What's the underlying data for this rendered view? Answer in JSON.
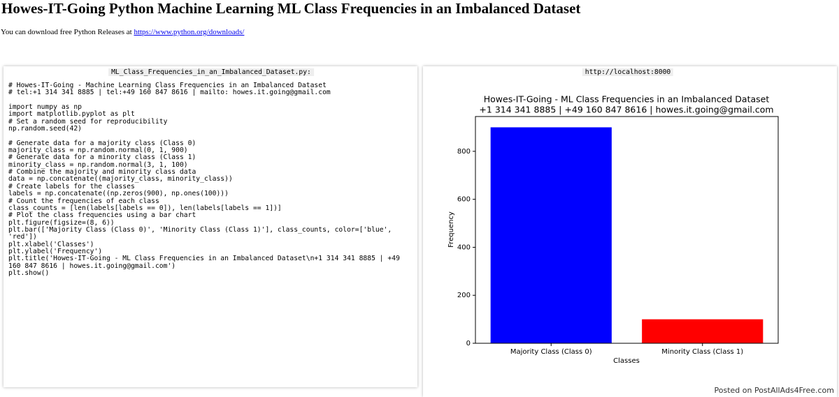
{
  "header": {
    "title": "Howes-IT-Going Python Machine Learning ML Class Frequencies in an Imbalanced Dataset",
    "note": "You can download free Python Releases at",
    "link": "https://www.python.org/downloads/"
  },
  "code_panel": {
    "filename": "ML_Class_Frequencies_in_an_Imbalanced_Dataset.py:",
    "blocks": [
      [
        "# Howes-IT-Going - Machine Learning Class Frequencies in an Imbalanced Dataset",
        "# tel:+1 314 341 8885 | tel:+49 160 847 8616 | mailto: howes.it.going@gmail.com"
      ],
      [
        "import numpy as np",
        "import matplotlib.pyplot as plt",
        "# Set a random seed for reproducibility",
        "np.random.seed(42)"
      ],
      [
        "# Generate data for a majority class (Class 0)",
        "majority_class = np.random.normal(0, 1, 900)",
        "# Generate data for a minority class (Class 1)",
        "minority_class = np.random.normal(3, 1, 100)",
        "# Combine the majority and minority class data",
        "data = np.concatenate((majority_class, minority_class))",
        "# Create labels for the classes",
        "labels = np.concatenate((np.zeros(900), np.ones(100)))",
        "# Count the frequencies of each class",
        "class_counts = [len(labels[labels == 0]), len(labels[labels == 1])]",
        "# Plot the class frequencies using a bar chart",
        "plt.figure(figsize=(8, 6))",
        "plt.bar(['Majority Class (Class 0)', 'Minority Class (Class 1)'], class_counts, color=['blue',",
        "'red'])",
        "plt.xlabel('Classes')",
        "plt.ylabel('Frequency')",
        "plt.title('Howes-IT-Going - ML Class Frequencies in an Imbalanced Dataset\\n+1 314 341 8885 | +49",
        "160 847 8616 | howes.it.going@gmail.com')",
        "plt.show()"
      ]
    ]
  },
  "output_panel": {
    "url": "http://localhost:8000"
  },
  "chart_data": {
    "type": "bar",
    "title": "Howes-IT-Going - ML Class Frequencies in an Imbalanced Dataset",
    "subtitle": "+1 314 341 8885 | +49 160 847 8616 | howes.it.going@gmail.com",
    "categories": [
      "Majority Class (Class 0)",
      "Minority Class (Class 1)"
    ],
    "values": [
      900,
      100
    ],
    "colors": [
      "#0000ff",
      "#ff0000"
    ],
    "x_label": "Classes",
    "y_label": "Frequency",
    "ylim": [
      0,
      945
    ],
    "yticks": [
      0,
      200,
      400,
      600,
      800
    ],
    "grid": false
  },
  "footer": {
    "watermark": "Posted on PostAllAds4Free.com"
  }
}
